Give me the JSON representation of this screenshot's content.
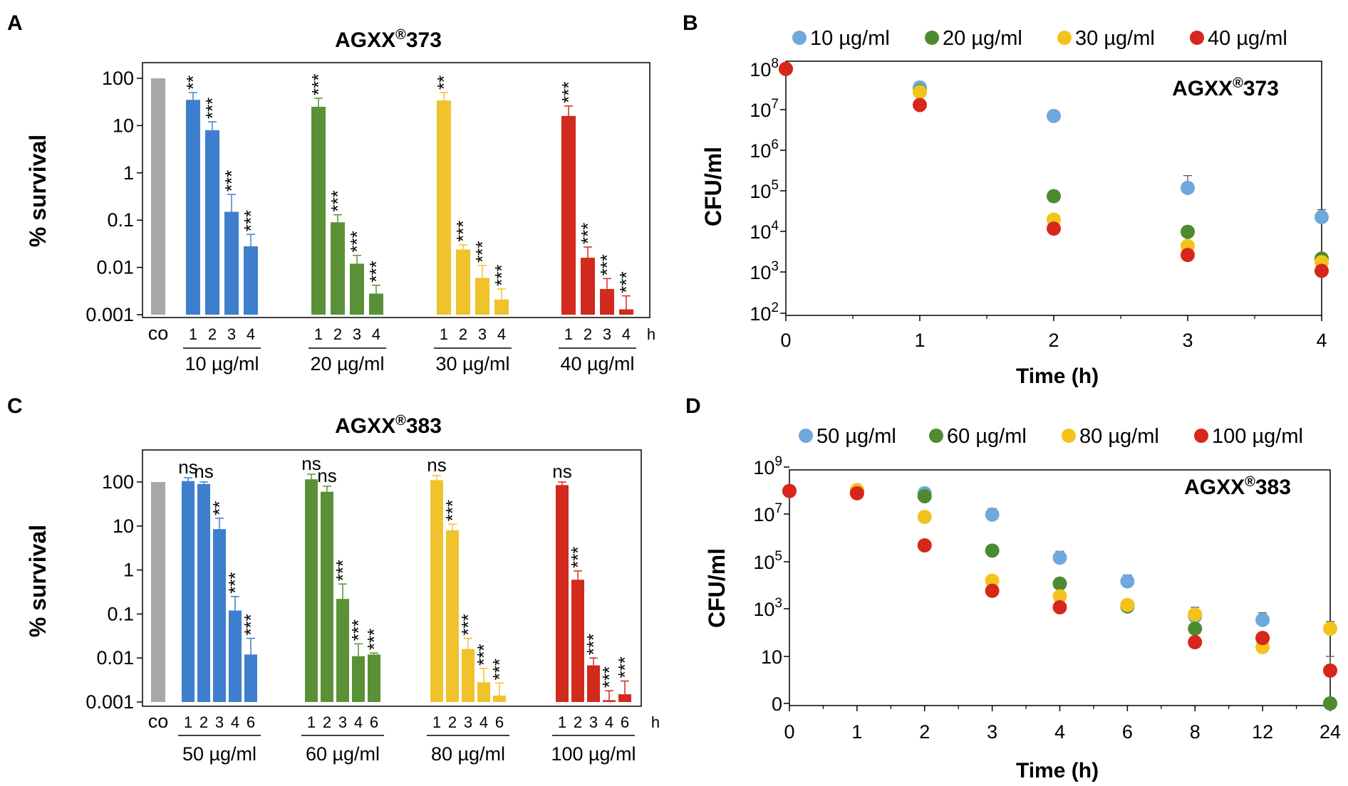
{
  "colors": {
    "c1": "#6fa8dc",
    "c2": "#4e8a2f",
    "c3": "#f3c31c",
    "c4": "#d7261b",
    "bar1": "#3d7fcc",
    "bar2": "#5a9137",
    "bar3": "#f0c22c",
    "bar4": "#d22a1d",
    "control": "#a8a8a8",
    "axis": "#000000"
  },
  "chart_data": [
    {
      "panel": "A",
      "type": "bar",
      "title_base": "AGXX",
      "title_sup": "®",
      "title_num": "373",
      "ylabel": "% survival",
      "yscale": "log",
      "ylim": [
        0.001,
        100
      ],
      "yticks": [
        "100",
        "10",
        "1",
        "0.1",
        "0.01",
        "0.001"
      ],
      "control_label": "co",
      "control_value": 100,
      "time_unit": "h",
      "groups": [
        {
          "name": "10 µg/ml",
          "hours": [
            "1",
            "2",
            "3",
            "4"
          ],
          "values": [
            35,
            8,
            0.15,
            0.028
          ],
          "errors": [
            50,
            12,
            0.35,
            0.05
          ],
          "sig": [
            "**",
            "***",
            "***",
            "***"
          ]
        },
        {
          "name": "20 µg/ml",
          "hours": [
            "1",
            "2",
            "3",
            "4"
          ],
          "values": [
            25,
            0.09,
            0.012,
            0.0028
          ],
          "errors": [
            38,
            0.13,
            0.018,
            0.0042
          ],
          "sig": [
            "***",
            "***",
            "***",
            "***"
          ]
        },
        {
          "name": "30 µg/ml",
          "hours": [
            "1",
            "2",
            "3",
            "4"
          ],
          "values": [
            34,
            0.024,
            0.006,
            0.0021
          ],
          "errors": [
            50,
            0.03,
            0.011,
            0.0035
          ],
          "sig": [
            "**",
            "***",
            "***",
            "***"
          ]
        },
        {
          "name": "40 µg/ml",
          "hours": [
            "1",
            "2",
            "3",
            "4"
          ],
          "values": [
            16,
            0.016,
            0.0035,
            0.0013
          ],
          "errors": [
            26,
            0.027,
            0.0058,
            0.0025
          ],
          "sig": [
            "***",
            "***",
            "***",
            "***"
          ]
        }
      ]
    },
    {
      "panel": "B",
      "type": "scatter",
      "inset_base": "AGXX",
      "inset_sup": "®",
      "inset_num": "373",
      "xlabel": "Time (h)",
      "ylabel": "CFU/ml",
      "yscale": "log",
      "ylim_exponent": [
        2,
        8
      ],
      "yticks": [
        "10^8",
        "10^7",
        "10^6",
        "10^5",
        "10^4",
        "10^3",
        "10^2"
      ],
      "x_categories": [
        "0",
        "1",
        "2",
        "3",
        "4"
      ],
      "series": [
        {
          "name": "10 µg/ml",
          "values": [
            100000000,
            35000000,
            7000000,
            120000,
            23000
          ],
          "errors": [
            null,
            null,
            null,
            240000,
            35000
          ]
        },
        {
          "name": "20 µg/ml",
          "values": [
            100000000,
            28000000,
            75000,
            10000,
            2200
          ],
          "errors": [
            null,
            null,
            null,
            null,
            null
          ]
        },
        {
          "name": "30 µg/ml",
          "values": [
            100000000,
            27000000,
            20000,
            4500,
            1800
          ],
          "errors": [
            null,
            null,
            null,
            null,
            null
          ]
        },
        {
          "name": "40 µg/ml",
          "values": [
            100000000,
            13000000,
            12000,
            2700,
            1100
          ],
          "errors": [
            null,
            null,
            null,
            null,
            null
          ]
        }
      ]
    },
    {
      "panel": "C",
      "type": "bar",
      "title_base": "AGXX",
      "title_sup": "®",
      "title_num": "383",
      "ylabel": "% survival",
      "yscale": "log",
      "ylim": [
        0.001,
        100
      ],
      "yticks": [
        "100",
        "10",
        "1",
        "0.1",
        "0.01",
        "0.001"
      ],
      "control_label": "co",
      "control_value": 100,
      "time_unit": "h",
      "groups": [
        {
          "name": "50 µg/ml",
          "hours": [
            "1",
            "2",
            "3",
            "4",
            "6"
          ],
          "values": [
            105,
            90,
            8.5,
            0.12,
            0.012
          ],
          "errors": [
            125,
            100,
            15,
            0.25,
            0.028
          ],
          "sig": [
            "ns",
            "ns",
            "**",
            "***",
            "***"
          ]
        },
        {
          "name": "60 µg/ml",
          "hours": [
            "1",
            "2",
            "3",
            "4",
            "6"
          ],
          "values": [
            115,
            60,
            0.22,
            0.011,
            0.012
          ],
          "errors": [
            150,
            80,
            0.48,
            0.021,
            0.013
          ],
          "sig": [
            "ns",
            "ns",
            "***",
            "***",
            "***"
          ]
        },
        {
          "name": "80 µg/ml",
          "hours": [
            "1",
            "2",
            "3",
            "4",
            "6"
          ],
          "values": [
            110,
            8,
            0.016,
            0.0028,
            0.0014
          ],
          "errors": [
            140,
            11,
            0.028,
            0.0058,
            0.0027
          ],
          "sig": [
            "ns",
            "***",
            "***",
            "***",
            "***"
          ]
        },
        {
          "name": "100 µg/ml",
          "hours": [
            "1",
            "2",
            "3",
            "4",
            "6"
          ],
          "values": [
            85,
            0.6,
            0.0068,
            0.0011,
            0.0015
          ],
          "errors": [
            100,
            0.95,
            0.01,
            0.0018,
            0.003
          ],
          "sig": [
            "ns",
            "***",
            "***",
            "***",
            "***"
          ]
        }
      ]
    },
    {
      "panel": "D",
      "type": "scatter",
      "inset_base": "AGXX",
      "inset_sup": "®",
      "inset_num": "383",
      "xlabel": "Time (h)",
      "ylabel": "CFU/ml",
      "yscale": "log",
      "yticks": [
        "10^9",
        "10^7",
        "10^5",
        "10^3",
        "10",
        "0"
      ],
      "x_categories": [
        "0",
        "1",
        "2",
        "3",
        "4",
        "6",
        "8",
        "12",
        "24"
      ],
      "series": [
        {
          "name": "50 µg/ml",
          "values": [
            100000000,
            100000000,
            80000000,
            10000000,
            150000,
            15000,
            500,
            350,
            null
          ],
          "errors": [
            null,
            null,
            null,
            18000000,
            280000,
            28000,
            900,
            700,
            null
          ]
        },
        {
          "name": "60 µg/ml",
          "values": [
            100000000,
            100000000,
            60000000,
            300000,
            12000,
            1300,
            150,
            60,
            1
          ],
          "errors": [
            null,
            null,
            null,
            null,
            20000,
            null,
            null,
            null,
            null
          ]
        },
        {
          "name": "80 µg/ml",
          "values": [
            100000000,
            110000000,
            8000000,
            16000,
            3500,
            1500,
            600,
            25,
            150
          ],
          "errors": [
            null,
            null,
            null,
            25000,
            null,
            2500,
            1200,
            null,
            300
          ]
        },
        {
          "name": "100 µg/ml",
          "values": [
            100000000,
            80000000,
            500000,
            6000,
            1200,
            null,
            40,
            60,
            5
          ],
          "errors": [
            null,
            null,
            null,
            null,
            null,
            null,
            null,
            90,
            10
          ]
        }
      ]
    }
  ]
}
